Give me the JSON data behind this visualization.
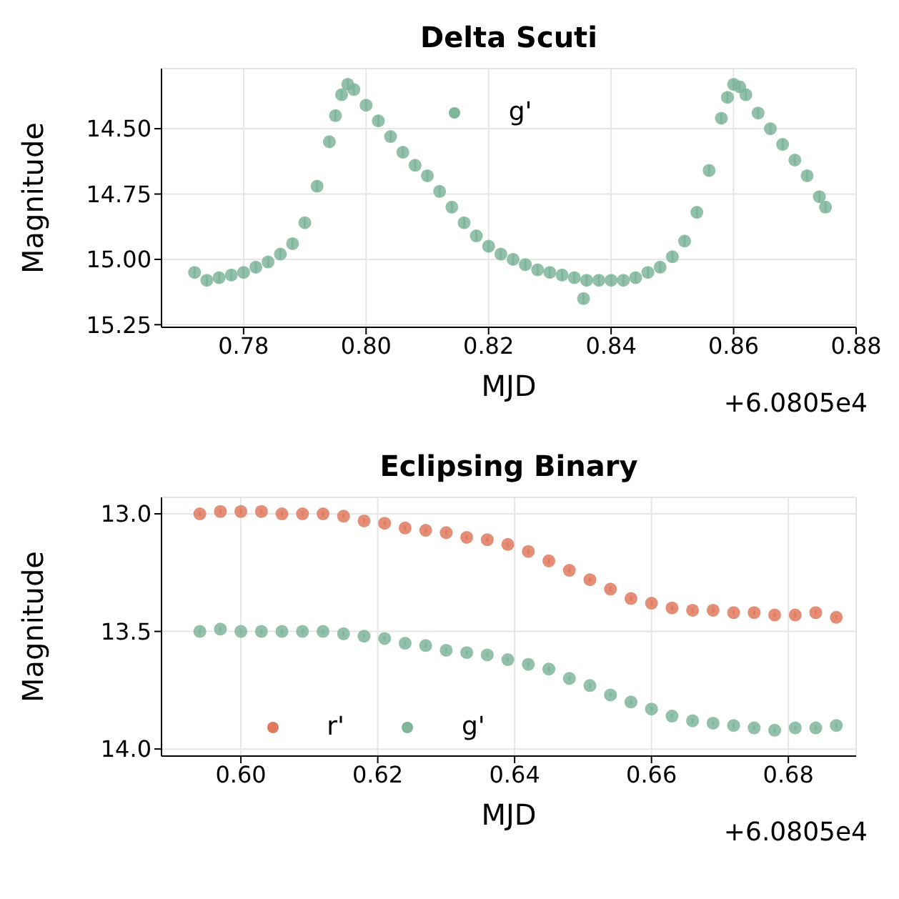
{
  "chart_data": [
    {
      "type": "scatter",
      "title": "Delta Scuti",
      "xlabel": "MJD",
      "ylabel": "Magnitude",
      "annotations": [
        "+6.0805e4"
      ],
      "grid": true,
      "legend": "top",
      "marker": "circle",
      "xlim": [
        0.7666,
        0.88
      ],
      "xticks": [
        {
          "value": 0.78,
          "label": "0.78"
        },
        {
          "value": 0.8,
          "label": "0.80"
        },
        {
          "value": 0.82,
          "label": "0.82"
        },
        {
          "value": 0.84,
          "label": "0.84"
        },
        {
          "value": 0.86,
          "label": "0.86"
        },
        {
          "value": 0.88,
          "label": "0.88"
        }
      ],
      "ylim": [
        15.26,
        14.27
      ],
      "yticks": [
        {
          "value": 14.5,
          "label": "14.50"
        },
        14.75,
        {
          "value": 15,
          "label": "15.00"
        },
        15.25
      ],
      "series": [
        {
          "name": "g'",
          "color": "#7fb59b",
          "x": [
            0.772,
            0.774,
            0.776,
            0.778,
            0.78,
            0.782,
            0.784,
            0.786,
            0.788,
            0.79,
            0.792,
            0.794,
            0.795,
            0.796,
            0.797,
            0.798,
            0.8,
            0.802,
            0.804,
            0.806,
            0.808,
            0.81,
            0.812,
            0.814,
            0.816,
            0.818,
            0.82,
            0.822,
            0.824,
            0.826,
            0.828,
            0.83,
            0.832,
            0.834,
            0.8355,
            0.836,
            0.838,
            0.84,
            0.842,
            0.844,
            0.846,
            0.848,
            0.85,
            0.852,
            0.854,
            0.856,
            0.858,
            0.859,
            0.86,
            0.861,
            0.862,
            0.864,
            0.866,
            0.868,
            0.87,
            0.872,
            0.874,
            0.875
          ],
          "values": [
            15.05,
            15.08,
            15.07,
            15.06,
            15.05,
            15.03,
            15.01,
            14.98,
            14.94,
            14.86,
            14.72,
            14.55,
            14.45,
            14.37,
            14.33,
            14.35,
            14.41,
            14.47,
            14.53,
            14.59,
            14.64,
            14.68,
            14.74,
            14.8,
            14.86,
            14.91,
            14.95,
            14.98,
            15.0,
            15.02,
            15.04,
            15.05,
            15.06,
            15.07,
            15.15,
            15.08,
            15.08,
            15.08,
            15.08,
            15.07,
            15.05,
            15.03,
            14.99,
            14.93,
            14.82,
            14.66,
            14.46,
            14.38,
            14.33,
            14.34,
            14.37,
            14.44,
            14.5,
            14.56,
            14.62,
            14.68,
            14.76,
            14.8
          ],
          "errors": [
            0.02,
            0.02,
            0.02,
            0.02,
            0.02,
            0.02,
            0.02,
            0.02,
            0.02,
            0.02,
            0.02,
            0.02,
            0.02,
            0.02,
            0.02,
            0.02,
            0.02,
            0.02,
            0.02,
            0.02,
            0.02,
            0.02,
            0.02,
            0.02,
            0.02,
            0.02,
            0.02,
            0.02,
            0.02,
            0.02,
            0.02,
            0.02,
            0.02,
            0.02,
            0.02,
            0.02,
            0.02,
            0.02,
            0.02,
            0.02,
            0.02,
            0.02,
            0.02,
            0.02,
            0.02,
            0.02,
            0.02,
            0.02,
            0.02,
            0.02,
            0.02,
            0.02,
            0.02,
            0.02,
            0.02,
            0.02,
            0.02,
            0.02
          ]
        }
      ]
    },
    {
      "type": "scatter",
      "title": "Eclipsing Binary",
      "xlabel": "MJD",
      "ylabel": "Magnitude",
      "annotations": [
        "+6.0805e4"
      ],
      "grid": true,
      "legend": "bottom left",
      "marker": "circle",
      "xlim": [
        0.5884,
        0.6899
      ],
      "xticks": [
        {
          "value": 0.6,
          "label": "0.60"
        },
        0.62,
        0.64,
        0.66,
        0.68
      ],
      "ylim": [
        14.03,
        12.93
      ],
      "yticks": [
        {
          "value": 13,
          "label": "13.0"
        },
        13.5,
        {
          "value": 14,
          "label": "14.0"
        }
      ],
      "series": [
        {
          "name": "r'",
          "color": "#e07a5f",
          "x": [
            0.594,
            0.597,
            0.6,
            0.603,
            0.606,
            0.609,
            0.612,
            0.615,
            0.618,
            0.621,
            0.624,
            0.627,
            0.63,
            0.633,
            0.636,
            0.639,
            0.642,
            0.645,
            0.648,
            0.651,
            0.654,
            0.657,
            0.66,
            0.663,
            0.666,
            0.669,
            0.672,
            0.675,
            0.678,
            0.681,
            0.684,
            0.687
          ],
          "values": [
            13.0,
            12.99,
            12.99,
            12.99,
            13.0,
            13.0,
            13.0,
            13.01,
            13.03,
            13.04,
            13.06,
            13.07,
            13.08,
            13.1,
            13.11,
            13.13,
            13.16,
            13.2,
            13.24,
            13.28,
            13.32,
            13.36,
            13.38,
            13.4,
            13.41,
            13.41,
            13.42,
            13.42,
            13.43,
            13.43,
            13.42,
            13.44
          ],
          "errors": [
            0.01,
            0.01,
            0.01,
            0.01,
            0.01,
            0.01,
            0.01,
            0.01,
            0.01,
            0.01,
            0.01,
            0.01,
            0.01,
            0.01,
            0.01,
            0.01,
            0.01,
            0.01,
            0.01,
            0.01,
            0.01,
            0.01,
            0.01,
            0.01,
            0.01,
            0.01,
            0.01,
            0.01,
            0.01,
            0.01,
            0.01,
            0.01
          ]
        },
        {
          "name": "g'",
          "color": "#7fb59b",
          "x": [
            0.594,
            0.597,
            0.6,
            0.603,
            0.606,
            0.609,
            0.612,
            0.615,
            0.618,
            0.621,
            0.624,
            0.627,
            0.63,
            0.633,
            0.636,
            0.639,
            0.642,
            0.645,
            0.648,
            0.651,
            0.654,
            0.657,
            0.66,
            0.663,
            0.666,
            0.669,
            0.672,
            0.675,
            0.678,
            0.681,
            0.684,
            0.687
          ],
          "values": [
            13.5,
            13.49,
            13.5,
            13.5,
            13.5,
            13.5,
            13.5,
            13.51,
            13.52,
            13.53,
            13.55,
            13.56,
            13.58,
            13.59,
            13.6,
            13.62,
            13.64,
            13.66,
            13.7,
            13.73,
            13.77,
            13.8,
            13.83,
            13.86,
            13.88,
            13.89,
            13.9,
            13.91,
            13.92,
            13.91,
            13.91,
            13.9
          ],
          "errors": [
            0.01,
            0.01,
            0.01,
            0.01,
            0.01,
            0.01,
            0.01,
            0.01,
            0.01,
            0.01,
            0.01,
            0.01,
            0.01,
            0.01,
            0.01,
            0.01,
            0.01,
            0.01,
            0.01,
            0.01,
            0.01,
            0.01,
            0.01,
            0.01,
            0.01,
            0.01,
            0.01,
            0.01,
            0.01,
            0.01,
            0.01,
            0.01
          ]
        }
      ]
    }
  ]
}
